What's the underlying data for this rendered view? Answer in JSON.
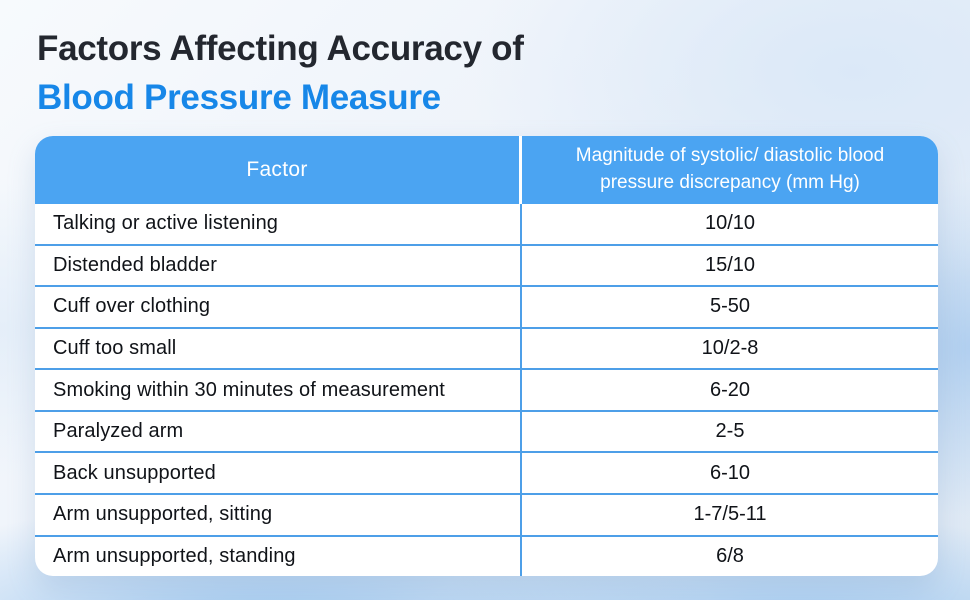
{
  "title": {
    "line1": "Factors Affecting Accuracy of",
    "line2": "Blood Pressure Measure"
  },
  "header": {
    "factor": "Factor",
    "magnitude": "Magnitude of systolic/ diastolic blood pressure discrepancy (mm Hg)"
  },
  "chart_data": {
    "type": "table",
    "title": "Factors Affecting Accuracy of Blood Pressure Measure",
    "columns": [
      "Factor",
      "Magnitude of systolic/ diastolic blood pressure discrepancy (mm Hg)"
    ],
    "rows": [
      [
        "Talking or active listening",
        "10/10"
      ],
      [
        "Distended bladder",
        "15/10"
      ],
      [
        "Cuff over clothing",
        "5-50"
      ],
      [
        "Cuff too small",
        "10/2-8"
      ],
      [
        "Smoking within 30 minutes of measurement",
        "6-20"
      ],
      [
        "Paralyzed arm",
        "2-5"
      ],
      [
        "Back unsupported",
        "6-10"
      ],
      [
        "Arm unsupported, sitting",
        "1-7/5-11"
      ],
      [
        "Arm unsupported, standing",
        "6/8"
      ]
    ]
  },
  "colors": {
    "header_bg": "#4BA4F2",
    "grid_line": "#4D9FE8",
    "title_dark": "#23272F",
    "title_blue": "#1787E8",
    "row_text": "#101318"
  }
}
